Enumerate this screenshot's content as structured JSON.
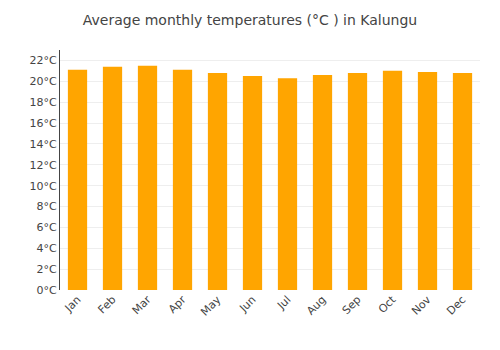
{
  "chart_data": {
    "type": "bar",
    "title": "Average monthly temperatures (°C ) in Kalungu",
    "categories": [
      "Jan",
      "Feb",
      "Mar",
      "Apr",
      "May",
      "Jun",
      "Jul",
      "Aug",
      "Sep",
      "Oct",
      "Nov",
      "Dec"
    ],
    "values": [
      21.1,
      21.4,
      21.5,
      21.1,
      20.8,
      20.5,
      20.3,
      20.6,
      20.8,
      21.0,
      20.9,
      20.8
    ],
    "color": "#FFA500",
    "ylim": [
      0,
      23
    ],
    "yticks": [
      {
        "value": 0,
        "label": "0°C"
      },
      {
        "value": 2,
        "label": "2°C"
      },
      {
        "value": 4,
        "label": "4°C"
      },
      {
        "value": 6,
        "label": "6°C"
      },
      {
        "value": 8,
        "label": "8°C"
      },
      {
        "value": 10,
        "label": "10°C"
      },
      {
        "value": 12,
        "label": "12°C"
      },
      {
        "value": 14,
        "label": "14°C"
      },
      {
        "value": 16,
        "label": "16°C"
      },
      {
        "value": 18,
        "label": "18°C"
      },
      {
        "value": 20,
        "label": "20°C"
      },
      {
        "value": 22,
        "label": "22°C"
      }
    ],
    "grid": true
  }
}
